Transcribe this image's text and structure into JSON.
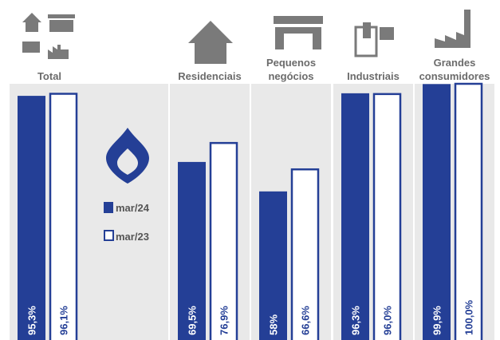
{
  "chart_data": {
    "type": "bar",
    "categories": [
      "Total",
      "Residenciais",
      "Pequenos negócios",
      "Industriais",
      "Grandes consumidores"
    ],
    "series": [
      {
        "name": "mar/24",
        "color": "#243f96",
        "values": [
          95.3,
          69.5,
          58,
          96.3,
          99.9
        ],
        "value_labels": [
          "95,3%",
          "69,5%",
          "58%",
          "96,3%",
          "99,9%"
        ]
      },
      {
        "name": "mar/23",
        "color": "#ffffff",
        "values": [
          96.1,
          76.9,
          66.6,
          96.0,
          100.0
        ],
        "value_labels": [
          "96,1%",
          "76,9%",
          "66,6%",
          "96,0%",
          "100,0%"
        ]
      }
    ]
  }
}
